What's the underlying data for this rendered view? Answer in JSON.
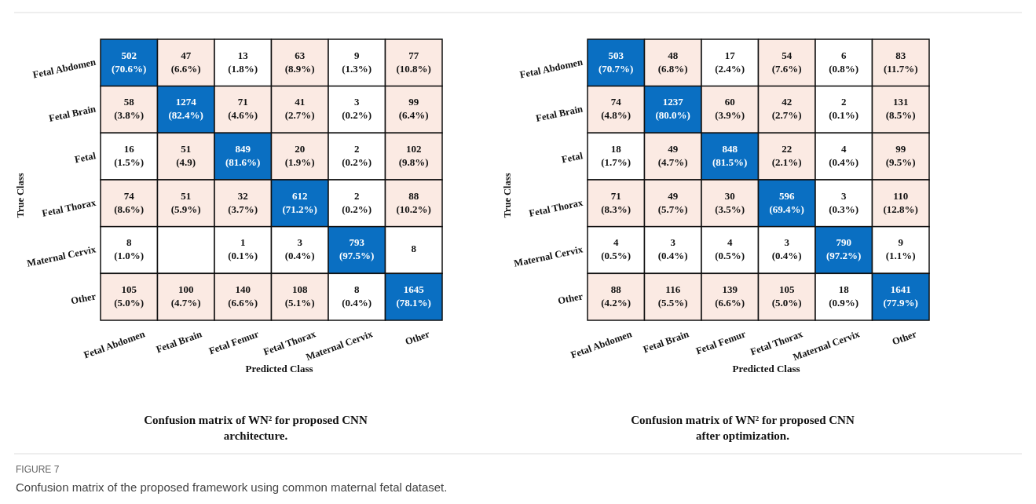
{
  "chart_data": [
    {
      "type": "heatmap",
      "title": "Confusion matrix of WN² for proposed CNN architecture.",
      "xlabel": "Predicted Class",
      "ylabel": "True Class",
      "data_labels": true,
      "categories": [
        "Fetal Abdomen",
        "Fetal Brain",
        "Fetal Femur",
        "Fetal Thorax",
        "Maternal Cervix",
        "Other"
      ],
      "y_categories": [
        "Fetal Abdomen",
        "Fetal Brain",
        "Fetal",
        "Fetal Thorax",
        "Maternal Cervix",
        "Other"
      ],
      "cells": [
        [
          502,
          47,
          13,
          63,
          9,
          77
        ],
        [
          58,
          1274,
          71,
          41,
          3,
          99
        ],
        [
          16,
          51,
          849,
          20,
          2,
          102
        ],
        [
          74,
          51,
          32,
          612,
          2,
          88
        ],
        [
          8,
          null,
          1,
          3,
          793,
          8
        ],
        [
          105,
          100,
          140,
          108,
          8,
          1645
        ]
      ],
      "annotations": [
        "(70.6%)",
        "(6.6%)",
        "(1.8%)",
        "(8.9%)",
        "(1.3%)",
        "(10.8%)",
        "(3.8%)",
        "(82.4%)",
        "(4.6%)",
        "(2.7%)",
        "(0.2%)",
        "(6.4%)",
        "(1.5%)",
        "(4.9)",
        "(81.6%)",
        "(1.9%)",
        "(0.2%)",
        "(9.8%)",
        "(8.6%)",
        "(5.9%)",
        "(3.7%)",
        "(71.2%)",
        "(0.2%)",
        "(10.2%)",
        "(1.0%)",
        null,
        "(0.1%)",
        "(0.4%)",
        "(97.5%)",
        null,
        "(5.0%)",
        "(4.7%)",
        "(6.6%)",
        "(5.1%)",
        "(0.4%)",
        "(78.1%)",
        "FIGURE 7",
        "Confusion matrix of the proposed framework using common maternal fetal dataset."
      ]
    },
    {
      "type": "heatmap",
      "title": "Confusion matrix of WN² for proposed CNN after optimization.",
      "xlabel": "Predicted Class",
      "ylabel": "True Class",
      "data_labels": true,
      "categories": [
        "Fetal Abdomen",
        "Fetal Brain",
        "Fetal Femur",
        "Fetal Thorax",
        "Maternal Cervix",
        "Other"
      ],
      "y_categories": [
        "Fetal Abdomen",
        "Fetal Brain",
        "Fetal",
        "Fetal Thorax",
        "Maternal Cervix",
        "Other"
      ],
      "cells": [
        [
          503,
          48,
          17,
          54,
          6,
          83
        ],
        [
          74,
          1237,
          60,
          42,
          2,
          131
        ],
        [
          18,
          49,
          848,
          22,
          4,
          99
        ],
        [
          71,
          49,
          30,
          596,
          3,
          110
        ],
        [
          4,
          3,
          4,
          3,
          790,
          9
        ],
        [
          88,
          116,
          139,
          105,
          18,
          1641
        ]
      ],
      "annotations": [
        "(70.7%)",
        "(6.8%)",
        "(2.4%)",
        "(7.6%)",
        "(0.8%)",
        "(11.7%)",
        "(4.8%)",
        "(80.0%)",
        "(3.9%)",
        "(2.7%)",
        "(0.1%)",
        "(8.5%)",
        "(1.7%)",
        "(4.7%)",
        "(81.5%)",
        "(2.1%)",
        "(0.4%)",
        "(9.5%)",
        "(8.3%)",
        "(5.7%)",
        "(3.5%)",
        "(69.4%)",
        "(0.3%)",
        "(12.8%)",
        "(0.5%)",
        "(0.4%)",
        "(0.5%)",
        "(0.4%)",
        "(97.2%)",
        "(1.1%)",
        "(4.2%)",
        "(5.5%)",
        "(6.6%)",
        "(5.0%)",
        "(0.9%)",
        "(77.9%)"
      ]
    }
  ]
}
